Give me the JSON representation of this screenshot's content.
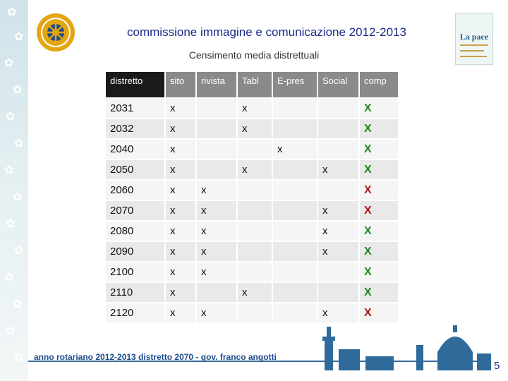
{
  "header": {
    "title": "commissione immagine e comunicazione 2012-2013",
    "subtitle": "Censimento media distrettuali"
  },
  "table": {
    "columns": [
      "distretto",
      "sito",
      "rivista",
      "Tabl",
      "E-pres",
      "Social",
      "comp"
    ],
    "rows": [
      [
        "2031",
        "x",
        "",
        "x",
        "",
        "",
        "X"
      ],
      [
        "2032",
        "x",
        "",
        "x",
        "",
        "",
        "X"
      ],
      [
        "2040",
        "x",
        "",
        "",
        "x",
        "",
        "X"
      ],
      [
        "2050",
        "x",
        "",
        "x",
        "",
        "x",
        "X"
      ],
      [
        "2060",
        "x",
        "x",
        "",
        "",
        "",
        "X"
      ],
      [
        "2070",
        "x",
        "x",
        "",
        "",
        "x",
        "X"
      ],
      [
        "2080",
        "x",
        "x",
        "",
        "",
        "x",
        "X"
      ],
      [
        "2090",
        "x",
        "x",
        "",
        "",
        "x",
        "X"
      ],
      [
        "2100",
        "x",
        "x",
        "",
        "",
        "",
        "X"
      ],
      [
        "2110",
        "x",
        "",
        "x",
        "",
        "",
        "X"
      ],
      [
        "2120",
        "x",
        "x",
        "",
        "",
        "x",
        "X"
      ]
    ],
    "comp_colors": [
      "green",
      "green",
      "green",
      "green",
      "red",
      "red",
      "green",
      "green",
      "green",
      "green",
      "red"
    ]
  },
  "footer": {
    "text": "anno rotariano 2012-2013   distretto 2070 - gov. franco angotti",
    "page_number": "5"
  },
  "poster": {
    "label": "La pace"
  },
  "icons": {
    "logo": "rotary-wheel-icon",
    "poster": "la-pace-poster-icon",
    "skyline": "florence-skyline-icon"
  },
  "colors": {
    "title": "#1a2a8a",
    "header_bg": "#8a8a8a",
    "comp_green": "#1f8a1f",
    "comp_red": "#b01818"
  }
}
